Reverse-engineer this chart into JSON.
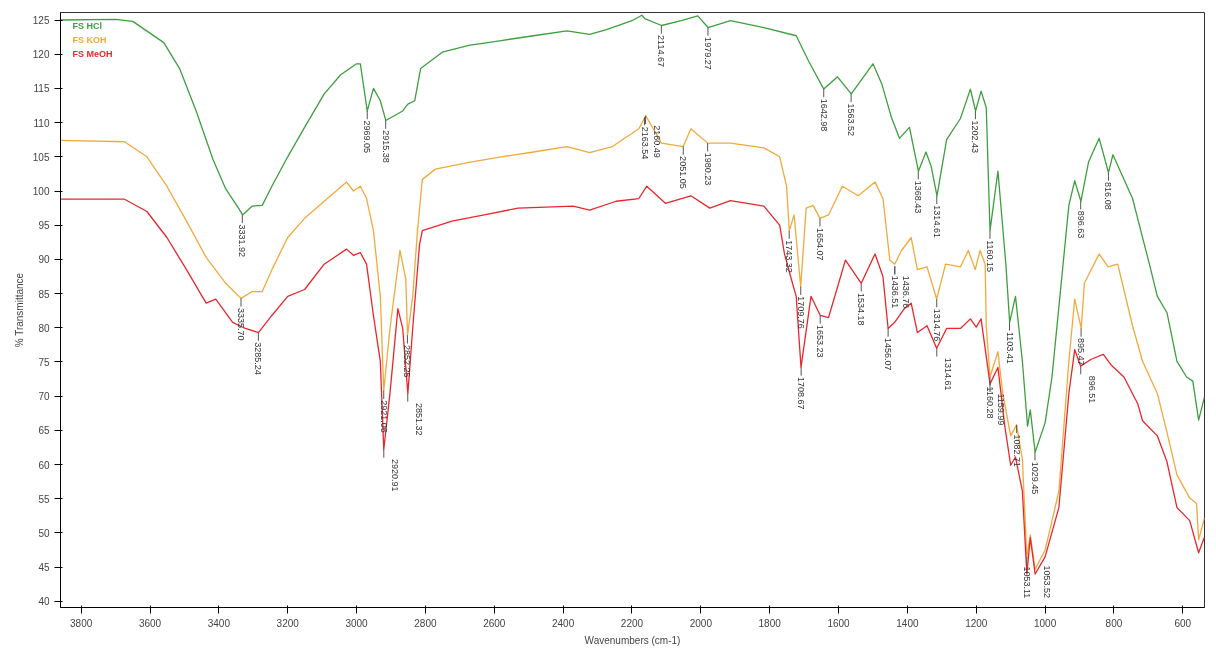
{
  "chart_data": {
    "type": "line",
    "xlabel": "Wavenumbers (cm-1)",
    "ylabel": "% Transmittance",
    "xlim": [
      3860,
      537
    ],
    "ylim": [
      39.1,
      126.1
    ],
    "xticks": [
      3800,
      3600,
      3400,
      3200,
      3000,
      2800,
      2600,
      2400,
      2200,
      2000,
      1800,
      1600,
      1400,
      1200,
      1000,
      800,
      600
    ],
    "yticks": [
      40,
      45,
      50,
      55,
      60,
      65,
      70,
      75,
      80,
      85,
      90,
      95,
      100,
      105,
      110,
      115,
      120,
      125
    ],
    "grid": false,
    "legend": "top left",
    "line_style": "solid",
    "marker": "none",
    "series": [
      {
        "name": "FS HCl",
        "color": "#3f9e3f",
        "x": [
          3860,
          3700,
          3650,
          3560,
          3514,
          3466,
          3417,
          3380,
          3343,
          3331,
          3303,
          3274,
          3246,
          3200,
          3151,
          3094,
          3046,
          3000,
          2989,
          2969,
          2951,
          2931,
          2915,
          2866,
          2851,
          2831,
          2814,
          2751,
          2674,
          2580,
          2486,
          2389,
          2323,
          2274,
          2200,
          2171,
          2163,
          2114,
          2057,
          2009,
          1979,
          1914,
          1817,
          1723,
          1686,
          1643,
          1603,
          1563,
          1500,
          1474,
          1446,
          1423,
          1394,
          1368,
          1346,
          1331,
          1314,
          1286,
          1246,
          1217,
          1202,
          1186,
          1171,
          1160,
          1137,
          1114,
          1103,
          1086,
          1066,
          1051,
          1043,
          1029,
          1000,
          980,
          957,
          931,
          914,
          896,
          874,
          843,
          816,
          803,
          746,
          697,
          674,
          646,
          617,
          589,
          571,
          554,
          537
        ],
        "values": [
          125,
          125.1,
          124.8,
          121.7,
          117.9,
          111.7,
          104.6,
          100.3,
          97.5,
          96.5,
          97.8,
          97.9,
          100.7,
          105,
          109.3,
          114.2,
          117,
          118.6,
          118.6,
          111.7,
          115,
          113.2,
          110.3,
          111.7,
          112.7,
          113.2,
          117.9,
          120.3,
          121.3,
          122,
          122.7,
          123.4,
          122.9,
          123.6,
          124.9,
          125.7,
          125.2,
          124.2,
          124.9,
          125.6,
          123.9,
          124.9,
          123.9,
          122.7,
          118.9,
          114.9,
          116.7,
          114.2,
          118.6,
          115.6,
          110.7,
          107.7,
          109.3,
          102.9,
          105.7,
          103.6,
          99.3,
          107.5,
          110.6,
          114.9,
          111.7,
          114.6,
          112.2,
          94.2,
          102.9,
          89.3,
          80.8,
          84.6,
          75.1,
          65.6,
          68,
          61.8,
          66.1,
          72.8,
          84.6,
          97.9,
          101.5,
          98.5,
          104.2,
          107.7,
          102.7,
          105.3,
          98.9,
          89.3,
          84.6,
          82.2,
          75.1,
          72.8,
          72.2,
          66.5,
          69.9
        ]
      },
      {
        "name": "FS KOH",
        "color": "#f2a93b",
        "x": [
          3860,
          3674,
          3609,
          3551,
          3494,
          3437,
          3380,
          3336,
          3303,
          3274,
          3246,
          3200,
          3151,
          3094,
          3029,
          3009,
          2989,
          2971,
          2951,
          2931,
          2921,
          2903,
          2874,
          2857,
          2852,
          2837,
          2823,
          2809,
          2771,
          2674,
          2580,
          2486,
          2389,
          2323,
          2257,
          2180,
          2160,
          2114,
          2051,
          2029,
          1980,
          1914,
          1817,
          1771,
          1751,
          1743,
          1729,
          1710,
          1694,
          1674,
          1654,
          1629,
          1589,
          1543,
          1494,
          1471,
          1451,
          1437,
          1417,
          1389,
          1371,
          1343,
          1315,
          1289,
          1246,
          1223,
          1203,
          1189,
          1174,
          1171,
          1160,
          1137,
          1123,
          1100,
          1083,
          1066,
          1053,
          1043,
          1029,
          1000,
          960,
          931,
          914,
          895,
          886,
          843,
          817,
          789,
          746,
          717,
          674,
          646,
          617,
          580,
          560,
          554,
          537
        ],
        "values": [
          107.4,
          107.2,
          105,
          100.7,
          95.6,
          90.3,
          86.5,
          84.3,
          85.3,
          85.3,
          88.5,
          93.2,
          96,
          98.5,
          101.3,
          100,
          100.7,
          98.9,
          94.2,
          84.6,
          70.8,
          79.9,
          91.3,
          87.1,
          78.9,
          84.6,
          94.2,
          101.7,
          103.2,
          104.2,
          105,
          105.7,
          106.5,
          105.6,
          106.5,
          109.1,
          111,
          107,
          106.5,
          109.1,
          107,
          107,
          106.3,
          105,
          100.7,
          94.2,
          96.5,
          86,
          97.5,
          97.9,
          96,
          96.5,
          100.7,
          99.3,
          101.3,
          98.9,
          89.9,
          89.3,
          91.3,
          93.2,
          88.5,
          88.9,
          84.2,
          89.3,
          88.9,
          91.3,
          88.5,
          91.3,
          89.3,
          80.3,
          72.8,
          76.5,
          70.4,
          64.2,
          65.8,
          60.8,
          46.5,
          49.7,
          44.7,
          47.5,
          56.1,
          75.1,
          84.2,
          79.9,
          86.5,
          90.8,
          88.9,
          89.3,
          80.3,
          75.1,
          70.4,
          64.7,
          58.5,
          55.1,
          54.3,
          49,
          52.2
        ]
      },
      {
        "name": "FS MeOH",
        "color": "#e8272c",
        "x": [
          3860,
          3674,
          3609,
          3551,
          3494,
          3437,
          3409,
          3360,
          3323,
          3285,
          3246,
          3200,
          3151,
          3094,
          3029,
          3009,
          2989,
          2971,
          2951,
          2931,
          2921,
          2903,
          2880,
          2866,
          2851,
          2837,
          2817,
          2809,
          2723,
          2629,
          2531,
          2371,
          2323,
          2246,
          2180,
          2157,
          2103,
          2029,
          1974,
          1914,
          1817,
          1771,
          1757,
          1737,
          1723,
          1709,
          1680,
          1653,
          1629,
          1580,
          1534,
          1494,
          1471,
          1456,
          1437,
          1409,
          1389,
          1371,
          1343,
          1315,
          1286,
          1246,
          1217,
          1200,
          1186,
          1160,
          1137,
          1117,
          1100,
          1086,
          1066,
          1053,
          1043,
          1029,
          1000,
          960,
          931,
          914,
          897,
          866,
          831,
          809,
          771,
          731,
          717,
          674,
          646,
          617,
          580,
          554,
          537
        ],
        "values": [
          98.8,
          98.8,
          97,
          93.2,
          88.5,
          83.6,
          84.2,
          80.8,
          79.9,
          79.3,
          81.8,
          84.6,
          85.6,
          89.3,
          91.5,
          90.6,
          91,
          89.3,
          81.8,
          75.1,
          62.2,
          70.4,
          82.8,
          79.9,
          70.4,
          79.9,
          92.2,
          94.2,
          95.6,
          96.5,
          97.5,
          97.8,
          97.2,
          98.5,
          98.9,
          100.7,
          98.2,
          99.3,
          97.5,
          98.6,
          97.8,
          95,
          90.8,
          87.1,
          84.6,
          74.2,
          84.6,
          81.8,
          81.5,
          89.9,
          86.5,
          90.8,
          87.5,
          79.9,
          80.8,
          82.8,
          83.6,
          79.3,
          80.3,
          77,
          79.9,
          79.9,
          81.3,
          80.1,
          81.3,
          71.8,
          74.2,
          65.6,
          59.9,
          61.1,
          56.1,
          44,
          49.3,
          44,
          46.5,
          53.7,
          70.4,
          76.8,
          74.4,
          75.4,
          76.1,
          74.6,
          72.8,
          68.9,
          66.4,
          64.2,
          60.4,
          53.7,
          51.8,
          47.1,
          49.4
        ]
      }
    ],
    "annotations": [
      {
        "text": "3331.92",
        "x": 3331.92,
        "y": 96.5
      },
      {
        "text": "2969.05",
        "x": 2969.05,
        "y": 111.7
      },
      {
        "text": "2915.38",
        "x": 2915.38,
        "y": 110.3
      },
      {
        "text": "2163.54",
        "x": 2163.54,
        "y": 110.8
      },
      {
        "text": "2160.49",
        "x": 2160.49,
        "y": 111
      },
      {
        "text": "2114.67",
        "x": 2114.67,
        "y": 124.2
      },
      {
        "text": "1979.27",
        "x": 1979.27,
        "y": 123.9
      },
      {
        "text": "1642.98",
        "x": 1642.98,
        "y": 114.9
      },
      {
        "text": "1563.52",
        "x": 1563.52,
        "y": 114.2
      },
      {
        "text": "1436.51",
        "x": 1436.51,
        "y": 89
      },
      {
        "text": "1436.76",
        "x": 1436.76,
        "y": 89
      },
      {
        "text": "1368.43",
        "x": 1368.43,
        "y": 102.9
      },
      {
        "text": "1314.61",
        "x": 1314.61,
        "y": 99.3
      },
      {
        "text": "1202.43",
        "x": 1202.43,
        "y": 111.7
      },
      {
        "text": "1160.15",
        "x": 1160.15,
        "y": 94.2
      },
      {
        "text": "1103.41",
        "x": 1103.41,
        "y": 80.8
      },
      {
        "text": "1029.45",
        "x": 1029.45,
        "y": 61.8
      },
      {
        "text": "896.63",
        "x": 896.63,
        "y": 98.5
      },
      {
        "text": "816.08",
        "x": 816.08,
        "y": 102.7
      },
      {
        "text": "3335.70",
        "x": 3335.7,
        "y": 84.3
      },
      {
        "text": "2921.06",
        "x": 2921.06,
        "y": 70.8
      },
      {
        "text": "2852.25",
        "x": 2852.25,
        "y": 78.9
      },
      {
        "text": "2051.05",
        "x": 2051.05,
        "y": 106.5
      },
      {
        "text": "1980.23",
        "x": 1980.23,
        "y": 107
      },
      {
        "text": "1743.32",
        "x": 1743.32,
        "y": 94.2
      },
      {
        "text": "1709.76",
        "x": 1709.76,
        "y": 86
      },
      {
        "text": "1654.07",
        "x": 1654.07,
        "y": 96
      },
      {
        "text": "1314.76",
        "x": 1314.76,
        "y": 84.2
      },
      {
        "text": "1160.28",
        "x": 1160.28,
        "y": 72.8
      },
      {
        "text": "1082.71",
        "x": 1082.71,
        "y": 65.8
      },
      {
        "text": "1053.11",
        "x": 1053.11,
        "y": 46.5
      },
      {
        "text": "895.47",
        "x": 895.47,
        "y": 79.9
      },
      {
        "text": "3285.24",
        "x": 3285.24,
        "y": 79.3
      },
      {
        "text": "2920.91",
        "x": 2920.91,
        "y": 62.2
      },
      {
        "text": "2851.32",
        "x": 2851.32,
        "y": 70.4
      },
      {
        "text": "1708.67",
        "x": 1708.67,
        "y": 74.2
      },
      {
        "text": "1653.23",
        "x": 1653.23,
        "y": 81.8
      },
      {
        "text": "1534.18",
        "x": 1534.18,
        "y": 86.5
      },
      {
        "text": "1456.07",
        "x": 1456.07,
        "y": 79.9
      },
      {
        "text": "1314.61",
        "x": 1314.61,
        "y": 77
      },
      {
        "text": "1159.99",
        "x": 1159.99,
        "y": 71.8
      },
      {
        "text": "1053.52",
        "x": 1053.52,
        "y": 44
      },
      {
        "text": "896.51",
        "x": 896.51,
        "y": 74.4
      }
    ]
  }
}
